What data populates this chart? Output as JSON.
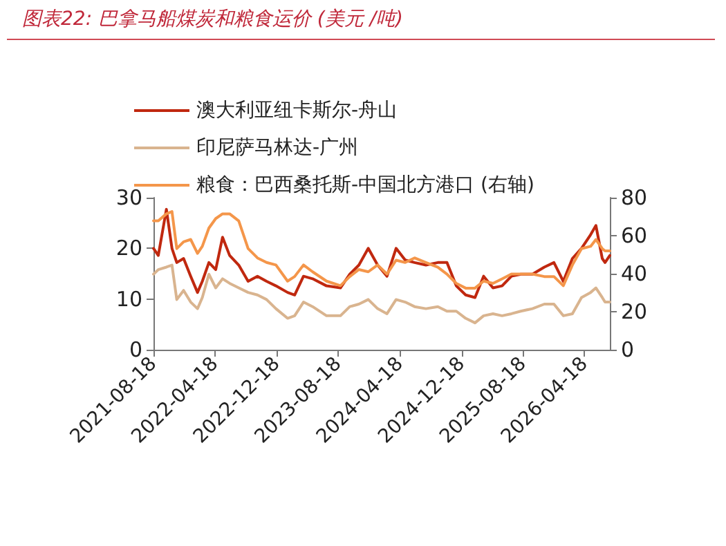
{
  "chart_data": {
    "type": "line",
    "title": "图表22:  巴拿马船煤炭和粮食运价 (美元 /吨)",
    "x": [
      "2021-08-18",
      "2021-09-06",
      "2021-10-08",
      "2021-10-30",
      "2021-11-18",
      "2021-12-15",
      "2022-01-12",
      "2022-02-08",
      "2022-02-27",
      "2022-03-25",
      "2022-04-21",
      "2022-05-18",
      "2022-06-15",
      "2022-07-21",
      "2022-08-27",
      "2022-10-03",
      "2022-11-08",
      "2022-12-15",
      "2023-01-30",
      "2023-02-27",
      "2023-04-03",
      "2023-05-09",
      "2023-07-03",
      "2023-08-27",
      "2023-10-03",
      "2023-11-08",
      "2023-12-15",
      "2024-01-21",
      "2024-02-27",
      "2024-04-03",
      "2024-05-09",
      "2024-06-15",
      "2024-07-30",
      "2024-09-15",
      "2024-10-21",
      "2024-11-27",
      "2025-01-03",
      "2025-02-09",
      "2025-03-15",
      "2025-04-21",
      "2025-05-27",
      "2025-07-03",
      "2025-08-09",
      "2025-09-24",
      "2025-11-10",
      "2025-12-18",
      "2026-01-24",
      "2026-03-01",
      "2026-04-06",
      "2026-05-12",
      "2026-06-02",
      "2026-06-27",
      "2026-07-08",
      "2026-07-27"
    ],
    "series": [
      {
        "name": "澳大利亚纽卡斯尔-舟山",
        "color": "#c0280f",
        "values": [
          20,
          18.6,
          27.7,
          20,
          17.2,
          18,
          14.5,
          11.3,
          13.5,
          17.2,
          15.8,
          22.2,
          18.6,
          16.7,
          13.5,
          14.5,
          13.5,
          12.6,
          11.3,
          10.8,
          14.5,
          14,
          12.6,
          12.2,
          14.9,
          16.7,
          20,
          16.7,
          14.5,
          20,
          17.7,
          17.2,
          16.7,
          17.2,
          17.2,
          12.6,
          10.8,
          10.3,
          14.5,
          12.2,
          12.6,
          14.5,
          14.9,
          14.9,
          16.3,
          17.2,
          13.5,
          18,
          20,
          22.7,
          24.5,
          18,
          17.2,
          18.6
        ]
      },
      {
        "name": "印尼萨马林达-广州",
        "color": "#d9b48f",
        "values": [
          14.9,
          15.8,
          16.3,
          16.7,
          9.9,
          11.7,
          9.4,
          8.1,
          10.3,
          14.9,
          12.2,
          14,
          13.1,
          12.2,
          11.3,
          10.8,
          9.9,
          8.1,
          6.2,
          6.7,
          9.4,
          8.5,
          6.7,
          6.7,
          8.5,
          9,
          9.9,
          8.1,
          7.1,
          9.9,
          9.4,
          8.5,
          8.1,
          8.5,
          7.6,
          7.6,
          6.2,
          5.3,
          6.7,
          7.1,
          6.7,
          7.1,
          7.6,
          8.1,
          9,
          9,
          6.7,
          7.1,
          10.3,
          11.3,
          12.2,
          10.3,
          9.4,
          9.4
        ]
      },
      {
        "name": "粮食：巴西桑托斯-中国北方港口 (右轴)",
        "color": "#f4964a",
        "axis": "y2",
        "values": [
          67.8,
          67.8,
          71.5,
          72.7,
          53.2,
          56.8,
          58,
          50.7,
          54.4,
          64,
          69,
          71.5,
          71.5,
          67.8,
          53.2,
          48.3,
          45.9,
          44.6,
          36.1,
          38.5,
          44.6,
          41,
          36.1,
          33.7,
          38.5,
          42.2,
          41,
          44.6,
          39.8,
          47.1,
          45.9,
          48.3,
          45.9,
          43.4,
          39.8,
          34.9,
          32.4,
          32.4,
          36.1,
          34.9,
          37.3,
          39.8,
          39.8,
          39.8,
          38.5,
          38.5,
          33.7,
          44.6,
          53.2,
          54.4,
          58,
          53.2,
          52,
          52
        ]
      }
    ],
    "xlim": [
      "2021-08-18",
      "2026-07-27"
    ],
    "xticks": [
      "2021-08-18",
      "2022-04-18",
      "2022-12-18",
      "2023-08-18",
      "2024-04-18",
      "2024-12-18",
      "2025-08-18",
      "2026-04-18"
    ],
    "ylim": [
      0,
      30
    ],
    "yticks": [
      0,
      10,
      20,
      30
    ],
    "y2lim": [
      0,
      80
    ],
    "y2ticks": [
      0,
      20,
      40,
      60,
      80
    ],
    "grid": false,
    "legend": "top left",
    "marker": "none",
    "line_style": "solid"
  }
}
